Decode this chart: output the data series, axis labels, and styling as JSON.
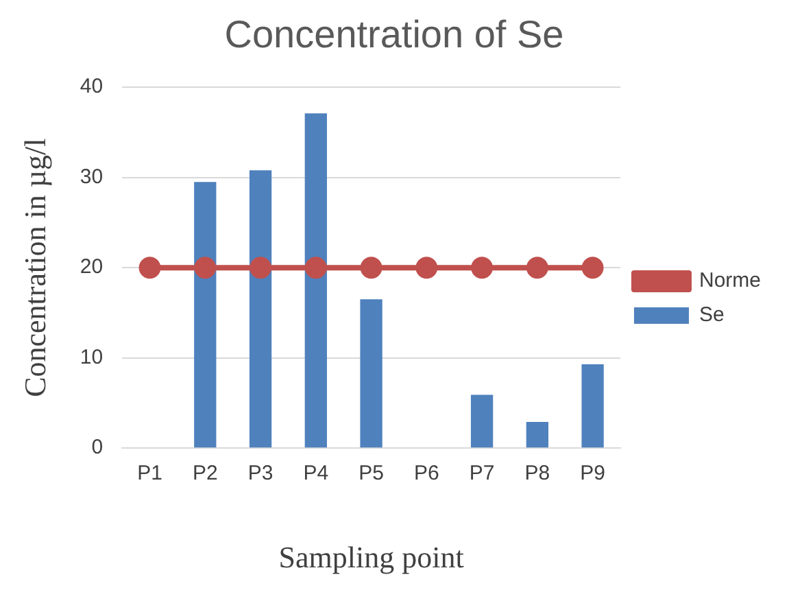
{
  "chart_data": {
    "type": "bar",
    "title": "Concentration of Se",
    "xlabel": "Sampling point",
    "ylabel": "Concentration in µg/l",
    "categories": [
      "P1",
      "P2",
      "P3",
      "P4",
      "P5",
      "P6",
      "P7",
      "P8",
      "P9"
    ],
    "series": [
      {
        "name": "Se",
        "color": "#4f81bd",
        "values": [
          0,
          29.5,
          30.8,
          37.1,
          16.5,
          0,
          5.9,
          2.9,
          9.3
        ]
      },
      {
        "name": "Norme",
        "type": "line",
        "color": "#c0504d",
        "marker": "circle",
        "values": [
          20,
          20,
          20,
          20,
          20,
          20,
          20,
          20,
          20
        ]
      }
    ],
    "ylim": [
      0,
      40
    ],
    "yticks": [
      0,
      10,
      20,
      30,
      40
    ],
    "grid": "y",
    "legend": "right"
  }
}
